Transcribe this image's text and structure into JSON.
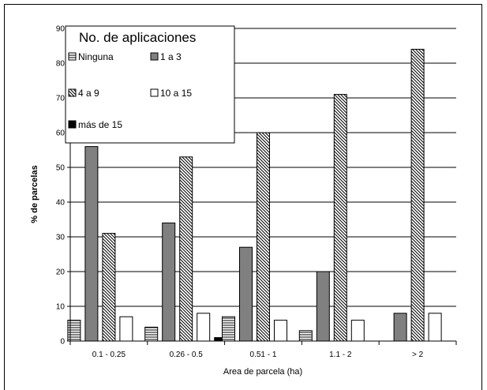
{
  "chart_data": {
    "type": "bar",
    "title": "",
    "xlabel": "Area de parcela (ha)",
    "ylabel": "% de parcelas",
    "ylim": [
      0,
      90
    ],
    "yticks": [
      "0",
      "10",
      "20",
      "30",
      "40",
      "50",
      "60",
      "70",
      "80",
      "90"
    ],
    "grid": true,
    "legend_title": "No. de aplicaciones",
    "legend_position": "top-left",
    "categories": [
      "0.1 - 0.25",
      "0.26 - 0.5",
      "0.51 - 1",
      "1.1 - 2",
      "> 2"
    ],
    "series": [
      {
        "name": "Ninguna",
        "pattern": "horizontal-lines",
        "color": "#ffffff",
        "values": [
          6,
          4,
          7,
          3,
          0
        ]
      },
      {
        "name": "1 a 3",
        "pattern": "solid",
        "color": "#808080",
        "values": [
          56,
          34,
          27,
          20,
          8
        ]
      },
      {
        "name": "4 a 9",
        "pattern": "diagonal-lines",
        "color": "#ffffff",
        "values": [
          31,
          53,
          60,
          71,
          84
        ]
      },
      {
        "name": "10 a 15",
        "pattern": "solid",
        "color": "#ffffff",
        "values": [
          7,
          8,
          6,
          6,
          8
        ]
      },
      {
        "name": "más de 15",
        "pattern": "solid",
        "color": "#000000",
        "values": [
          0,
          1,
          0,
          0,
          0
        ]
      }
    ]
  }
}
